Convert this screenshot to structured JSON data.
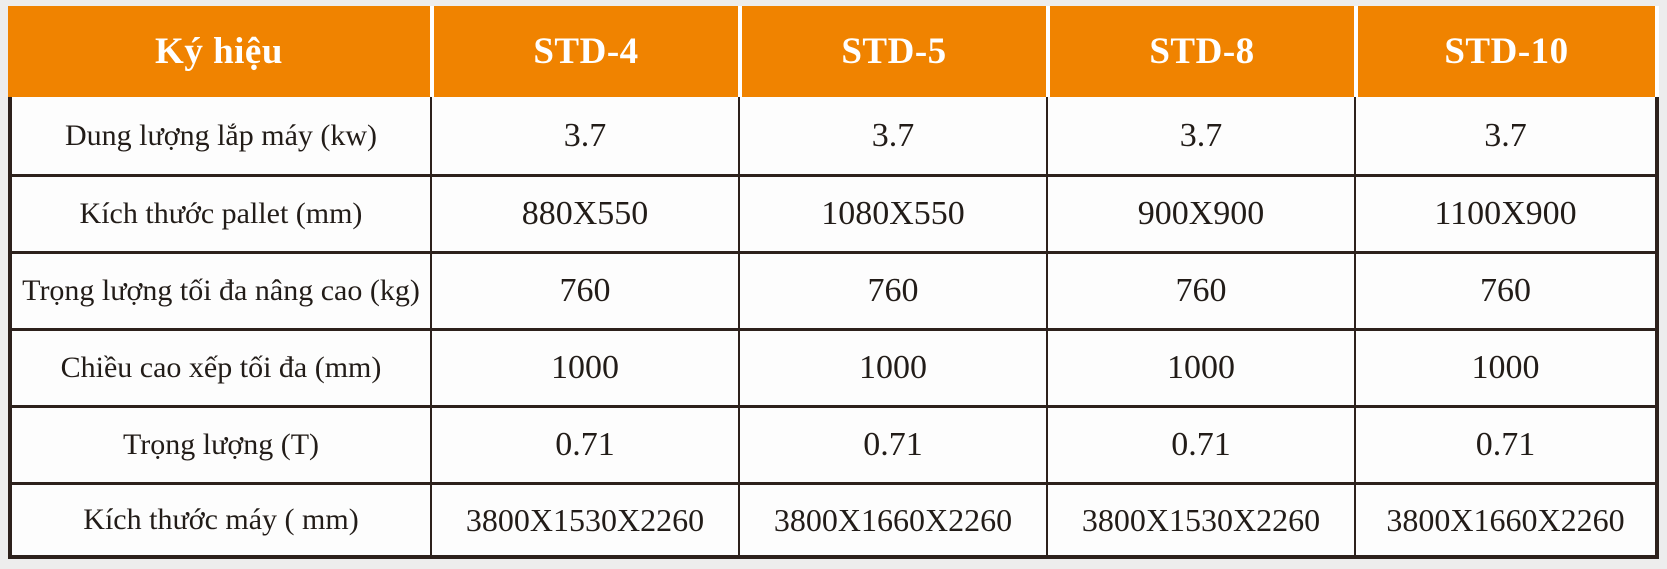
{
  "colors": {
    "page_bg": "#EDEDED",
    "header_bg": "#F08300",
    "header_text": "#FFFFFF",
    "border": "#2D211C",
    "cell_bg": "#FDFDFD",
    "cell_text": "#221C18",
    "header_divider": "#FFFFFF"
  },
  "table": {
    "header": {
      "label_col": "Ký hiệu",
      "model_cols": [
        "STD-4",
        "STD-5",
        "STD-8",
        "STD-10"
      ]
    },
    "rows": [
      {
        "label": "Dung lượng lắp máy (kw)",
        "values": [
          "3.7",
          "3.7",
          "3.7",
          "3.7"
        ]
      },
      {
        "label": "Kích thước pallet (mm)",
        "values": [
          "880X550",
          "1080X550",
          "900X900",
          "1100X900"
        ]
      },
      {
        "label": "Trọng lượng tối đa nâng cao (kg)",
        "values": [
          "760",
          "760",
          "760",
          "760"
        ]
      },
      {
        "label": "Chiều cao xếp tối đa (mm)",
        "values": [
          "1000",
          "1000",
          "1000",
          "1000"
        ]
      },
      {
        "label": "Trọng lượng (T)",
        "values": [
          "0.71",
          "0.71",
          "0.71",
          "0.71"
        ]
      },
      {
        "label": "Kích thước máy ( mm)",
        "values": [
          "3800X1530X2260",
          "3800X1660X2260",
          "3800X1530X2260",
          "3800X1660X2260"
        ]
      }
    ]
  }
}
